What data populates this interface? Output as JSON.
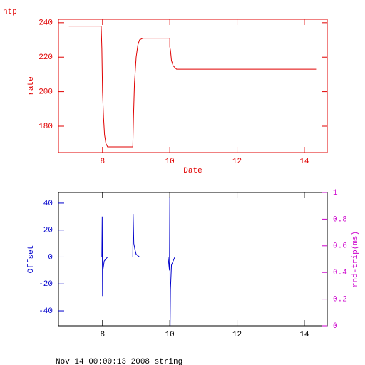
{
  "chart_data": [
    {
      "type": "line",
      "title": "ntp",
      "xlabel": "Date",
      "ylabel": "rate",
      "axis_color": "#e00000",
      "frame_color": "#e00000",
      "xlim": [
        6.69,
        14.68
      ],
      "xticks": [
        8,
        10,
        12,
        14
      ],
      "ylim": [
        164.7,
        242
      ],
      "yticks": [
        180,
        200,
        220,
        240
      ],
      "series": [
        {
          "name": "rate",
          "color": "#e00000",
          "x": [
            7.0,
            7.96,
            7.98,
            8.0,
            8.03,
            8.06,
            8.1,
            8.15,
            8.9,
            8.92,
            8.95,
            9.0,
            9.05,
            9.1,
            9.2,
            10.0,
            10.0,
            10.02,
            10.05,
            10.1,
            10.2,
            14.35
          ],
          "values": [
            238,
            238,
            225,
            200,
            185,
            175,
            170,
            168,
            168,
            185,
            205,
            220,
            227,
            230,
            231,
            231,
            226,
            224,
            218,
            215,
            213,
            213
          ]
        }
      ]
    },
    {
      "type": "line",
      "ylabel": "Offset",
      "y2label": "rnd-trip(ms)",
      "axis_color": "#0000cc",
      "frame_color": "#000000",
      "xtick_color": "#000000",
      "y2_color": "#cc00cc",
      "xlim": [
        6.69,
        14.68
      ],
      "xticks": [
        8,
        10,
        12,
        14
      ],
      "ylim": [
        -51.1,
        47.9
      ],
      "yticks": [
        -40,
        -20,
        0,
        20,
        40
      ],
      "y2lim": [
        0,
        1
      ],
      "y2ticks": [
        0,
        0.2,
        0.4,
        0.6,
        0.8,
        1
      ],
      "series": [
        {
          "name": "Offset",
          "color": "#0000cc",
          "x": [
            7.0,
            7.98,
            7.99,
            8.0,
            8.01,
            8.05,
            8.15,
            8.9,
            8.91,
            8.93,
            8.96,
            9.0,
            9.1,
            9.95,
            9.99,
            10.0,
            10.01,
            10.02,
            10.05,
            10.15,
            14.4
          ],
          "values": [
            0,
            0,
            30,
            -29,
            -10,
            -3,
            0,
            0,
            32,
            10,
            6,
            2,
            0,
            0,
            -10,
            44,
            -51,
            -24,
            -6,
            0,
            0
          ]
        }
      ]
    }
  ],
  "footer": "Nov 14 00:00:13 2008 string"
}
